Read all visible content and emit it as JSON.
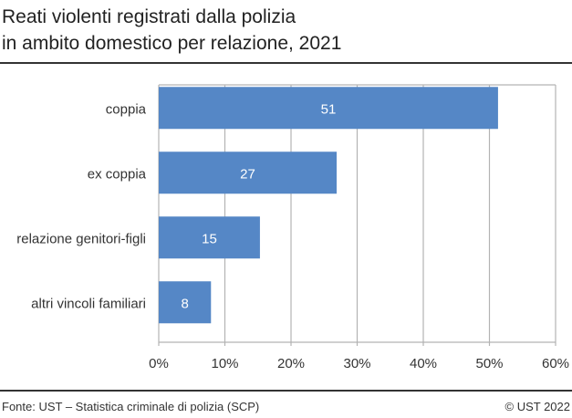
{
  "chart_data": {
    "type": "bar",
    "orientation": "horizontal",
    "title": "Reati violenti registrati dalla polizia in ambito domestico per relazione, 2021",
    "title_lines": [
      "Reati violenti registrati dalla polizia",
      "in ambito domestico per relazione, 2021"
    ],
    "categories": [
      "coppia",
      "ex coppia",
      "relazione genitori-figli",
      "altri vincoli familiari"
    ],
    "values": [
      51.3,
      26.9,
      15.3,
      7.9
    ],
    "data_labels": [
      "51",
      "27",
      "15",
      "8"
    ],
    "xlim": [
      0,
      60
    ],
    "x_ticks": [
      0,
      10,
      20,
      30,
      40,
      50,
      60
    ],
    "x_tick_labels": [
      "0%",
      "10%",
      "20%",
      "30%",
      "40%",
      "50%",
      "60%"
    ],
    "xlabel": "",
    "ylabel": "",
    "grid": true,
    "bar_color": "#5587c6"
  },
  "footer": {
    "source": "Fonte: UST – Statistica criminale di polizia (SCP)",
    "copyright": "© UST 2022"
  }
}
